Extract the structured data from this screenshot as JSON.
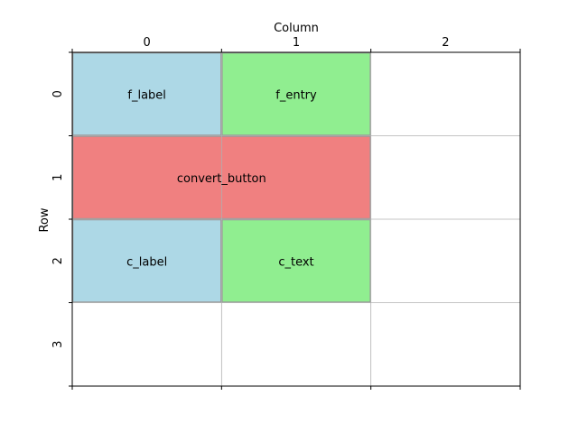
{
  "axes": {
    "xlabel": "Column",
    "ylabel": "Row",
    "x_ticks": [
      "0",
      "1",
      "2"
    ],
    "y_ticks": [
      "0",
      "1",
      "2",
      "3"
    ],
    "columns": 3,
    "rows": 4,
    "grid": true
  },
  "widgets": [
    {
      "label": "f_label",
      "row": 0,
      "column": 0,
      "rowspan": 1,
      "columnspan": 1,
      "color": "#add8e6"
    },
    {
      "label": "f_entry",
      "row": 0,
      "column": 1,
      "rowspan": 1,
      "columnspan": 1,
      "color": "#90ee90"
    },
    {
      "label": "convert_button",
      "row": 1,
      "column": 0,
      "rowspan": 1,
      "columnspan": 2,
      "color": "#f08080"
    },
    {
      "label": "c_label",
      "row": 2,
      "column": 0,
      "rowspan": 1,
      "columnspan": 1,
      "color": "#add8e6"
    },
    {
      "label": "c_text",
      "row": 2,
      "column": 1,
      "rowspan": 1,
      "columnspan": 1,
      "color": "#90ee90"
    }
  ],
  "colors": {
    "grid": "#b0b0b0",
    "frame": "#000000"
  }
}
